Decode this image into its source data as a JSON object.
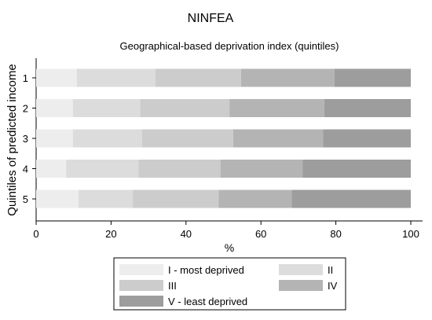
{
  "chart_data": {
    "type": "bar",
    "orientation": "horizontal",
    "stacked": true,
    "title": "NINFEA",
    "subtitle": "Geographical-based deprivation index (quintiles)",
    "xlabel": "%",
    "ylabel": "Quintiles of predicted income",
    "xlim": [
      0,
      100
    ],
    "xticks": [
      "0",
      "20",
      "40",
      "60",
      "80",
      "100"
    ],
    "grid": false,
    "legend_position": "bottom",
    "categories": [
      "1",
      "2",
      "3",
      "4",
      "5"
    ],
    "series": [
      {
        "name": "I - most deprived",
        "color": "#ededed",
        "values": [
          10.9,
          9.8,
          9.8,
          8.0,
          11.3
        ]
      },
      {
        "name": "II",
        "color": "#dcdcdc",
        "values": [
          20.9,
          18.0,
          18.5,
          19.3,
          14.5
        ]
      },
      {
        "name": "III",
        "color": "#cccccc",
        "values": [
          22.9,
          23.8,
          24.3,
          21.9,
          22.9
        ]
      },
      {
        "name": "IV",
        "color": "#b4b4b4",
        "values": [
          24.9,
          25.3,
          24.0,
          21.9,
          19.5
        ]
      },
      {
        "name": "V - least deprived",
        "color": "#9d9d9d",
        "values": [
          20.4,
          23.1,
          23.4,
          28.9,
          31.8
        ]
      }
    ]
  }
}
